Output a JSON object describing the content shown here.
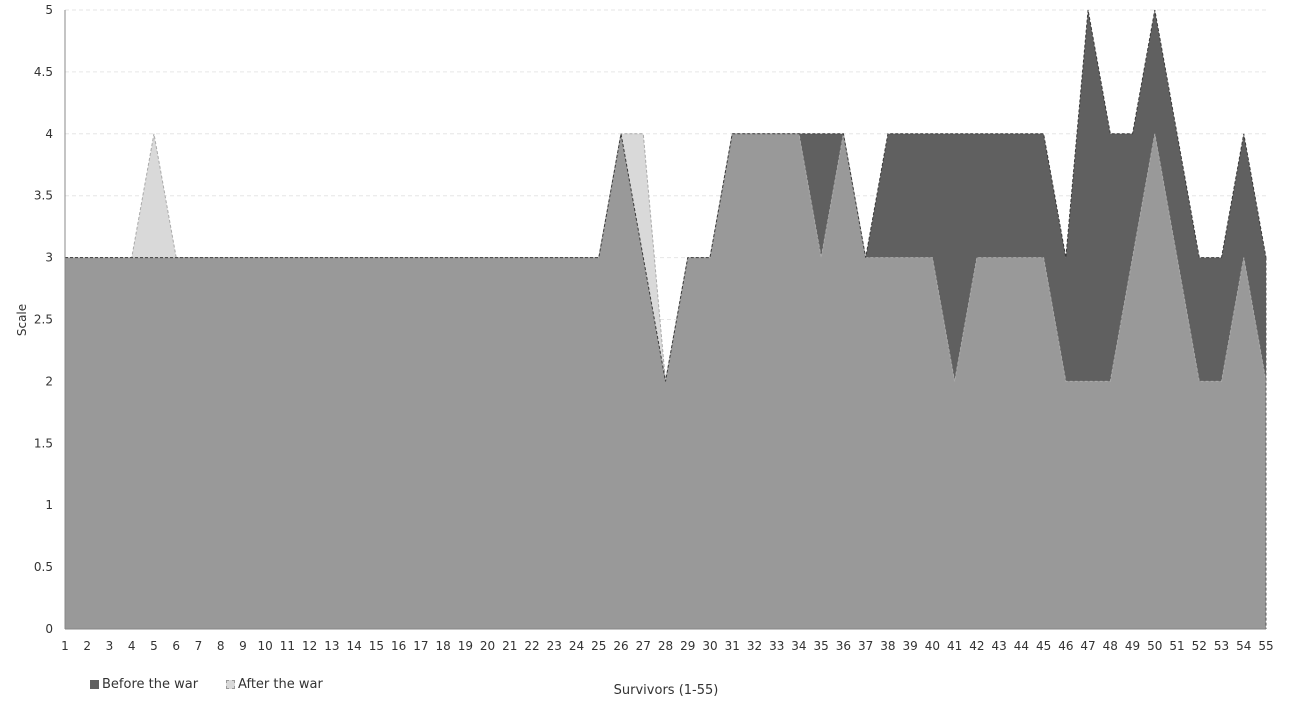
{
  "chart_data": {
    "type": "area",
    "xlabel": "Survivors (1-55)",
    "ylabel": "Scale",
    "x": [
      1,
      2,
      3,
      4,
      5,
      6,
      7,
      8,
      9,
      10,
      11,
      12,
      13,
      14,
      15,
      16,
      17,
      18,
      19,
      20,
      21,
      22,
      23,
      24,
      25,
      26,
      27,
      28,
      29,
      30,
      31,
      32,
      33,
      34,
      35,
      36,
      37,
      38,
      39,
      40,
      41,
      42,
      43,
      44,
      45,
      46,
      47,
      48,
      49,
      50,
      51,
      52,
      53,
      54,
      55
    ],
    "ylim": [
      0,
      5
    ],
    "yticks": [
      "0",
      "0.5",
      "1",
      "1.5",
      "2",
      "2.5",
      "3",
      "3.5",
      "4",
      "4.5",
      "5"
    ],
    "grid": true,
    "legend_position": "bottom-left",
    "series": [
      {
        "name": "Before the war",
        "color": "#606060",
        "values": [
          3,
          3,
          3,
          3,
          3,
          3,
          3,
          3,
          3,
          3,
          3,
          3,
          3,
          3,
          3,
          3,
          3,
          3,
          3,
          3,
          3,
          3,
          3,
          3,
          3,
          4,
          3,
          2,
          3,
          3,
          4,
          4,
          4,
          4,
          4,
          4,
          3,
          4,
          4,
          4,
          4,
          4,
          4,
          4,
          4,
          3,
          5,
          4,
          4,
          5,
          4,
          3,
          3,
          4,
          3
        ]
      },
      {
        "name": "After the war",
        "color": "#d9d9d9",
        "values": [
          3,
          3,
          3,
          3,
          4,
          3,
          3,
          3,
          3,
          3,
          3,
          3,
          3,
          3,
          3,
          3,
          3,
          3,
          3,
          3,
          3,
          3,
          3,
          3,
          3,
          4,
          4,
          2,
          3,
          3,
          4,
          4,
          4,
          4,
          3,
          4,
          3,
          3,
          3,
          3,
          2,
          3,
          3,
          3,
          3,
          2,
          2,
          2,
          3,
          4,
          3,
          2,
          2,
          3,
          2
        ]
      }
    ]
  }
}
